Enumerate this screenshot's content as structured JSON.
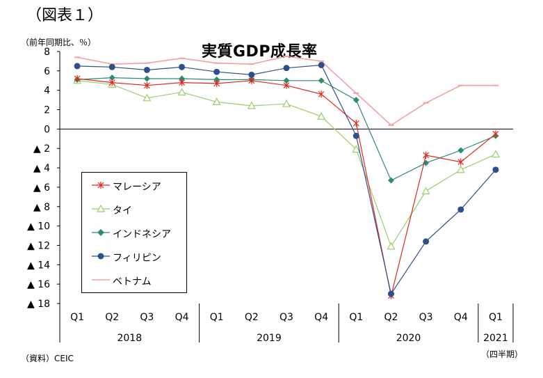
{
  "figure_label": "（図表１）",
  "unit_label": "（前年同期比、％）",
  "source_label": "（資料）CEIC",
  "period_note": "（四半期）",
  "chart_data": {
    "type": "line",
    "title": "実質GDP成長率",
    "xlabel": "",
    "ylabel": "（前年同期比、％）",
    "ylim": [
      -18,
      8
    ],
    "yticks": [
      8,
      6,
      4,
      2,
      0,
      -2,
      -4,
      -6,
      -8,
      -10,
      -12,
      -14,
      -16,
      -18
    ],
    "ytick_labels": [
      "8",
      "6",
      "4",
      "2",
      "0",
      "▲ 2",
      "▲ 4",
      "▲ 6",
      "▲ 8",
      "▲ 10",
      "▲ 12",
      "▲ 14",
      "▲ 16",
      "▲ 18"
    ],
    "categories": [
      "Q1",
      "Q2",
      "Q3",
      "Q4",
      "Q1",
      "Q2",
      "Q3",
      "Q4",
      "Q1",
      "Q2",
      "Q3",
      "Q4",
      "Q1"
    ],
    "years": [
      {
        "label": "2018",
        "start": 0,
        "end": 3
      },
      {
        "label": "2019",
        "start": 4,
        "end": 7
      },
      {
        "label": "2020",
        "start": 8,
        "end": 11
      },
      {
        "label": "2021",
        "start": 12,
        "end": 12
      }
    ],
    "grid": false,
    "legend_position": "bottom-left",
    "series": [
      {
        "name": "マレーシア",
        "color": "#e0281e",
        "marker": "star",
        "values": [
          5.2,
          4.8,
          4.5,
          4.8,
          4.7,
          5.0,
          4.5,
          3.6,
          0.6,
          -17.2,
          -2.7,
          -3.4,
          -0.5
        ]
      },
      {
        "name": "タイ",
        "color": "#9acd6a",
        "marker": "triangle-open",
        "values": [
          5.0,
          4.6,
          3.2,
          3.8,
          2.8,
          2.4,
          2.6,
          1.3,
          -2.1,
          -12.1,
          -6.4,
          -4.2,
          -2.6
        ]
      },
      {
        "name": "インドネシア",
        "color": "#2e8b6e",
        "marker": "diamond",
        "values": [
          5.1,
          5.3,
          5.2,
          5.2,
          5.1,
          5.1,
          5.0,
          5.0,
          3.0,
          -5.3,
          -3.5,
          -2.2,
          -0.7
        ]
      },
      {
        "name": "フィリピン",
        "color": "#2f4f8a",
        "marker": "circle",
        "values": [
          6.5,
          6.4,
          6.1,
          6.4,
          5.9,
          5.6,
          6.3,
          6.6,
          -0.7,
          -17.0,
          -11.6,
          -8.3,
          -4.2
        ]
      },
      {
        "name": "ベトナム",
        "color": "#f4a0a0",
        "marker": "dash",
        "values": [
          7.4,
          6.7,
          6.8,
          7.3,
          6.8,
          6.7,
          7.5,
          7.0,
          3.7,
          0.4,
          2.7,
          4.5,
          4.5
        ]
      }
    ]
  }
}
